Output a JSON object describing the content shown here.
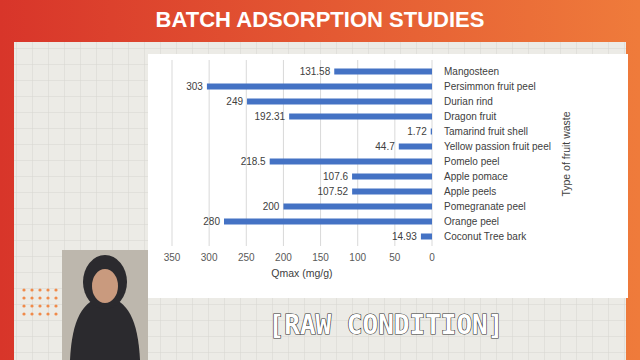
{
  "slide": {
    "title": "BATCH ADSORPTION STUDIES",
    "caption": "[RAW CONDITION]"
  },
  "chart_data": {
    "type": "bar",
    "orientation": "horizontal",
    "categories": [
      "Mangosteen",
      "Persimmon fruit peel",
      "Durian rind",
      "Dragon fruit",
      "Tamarind fruit shell",
      "Yellow passion fruit peel",
      "Pomelo peel",
      "Apple pomace",
      "Apple peels",
      "Pomegranate peel",
      "Orange peel",
      "Coconut Tree bark"
    ],
    "values": [
      131.58,
      303,
      249,
      192.31,
      1.72,
      44.7,
      218.5,
      107.6,
      107.52,
      200,
      280,
      14.93
    ],
    "color": "#4472c4",
    "x_label": "Qmax (mg/g)",
    "y_label": "Type of fruit waste",
    "xlim": [
      0,
      350
    ],
    "xticks": [
      0,
      50,
      100,
      150,
      200,
      250,
      300,
      350
    ],
    "grid": true,
    "data_labels": true
  }
}
